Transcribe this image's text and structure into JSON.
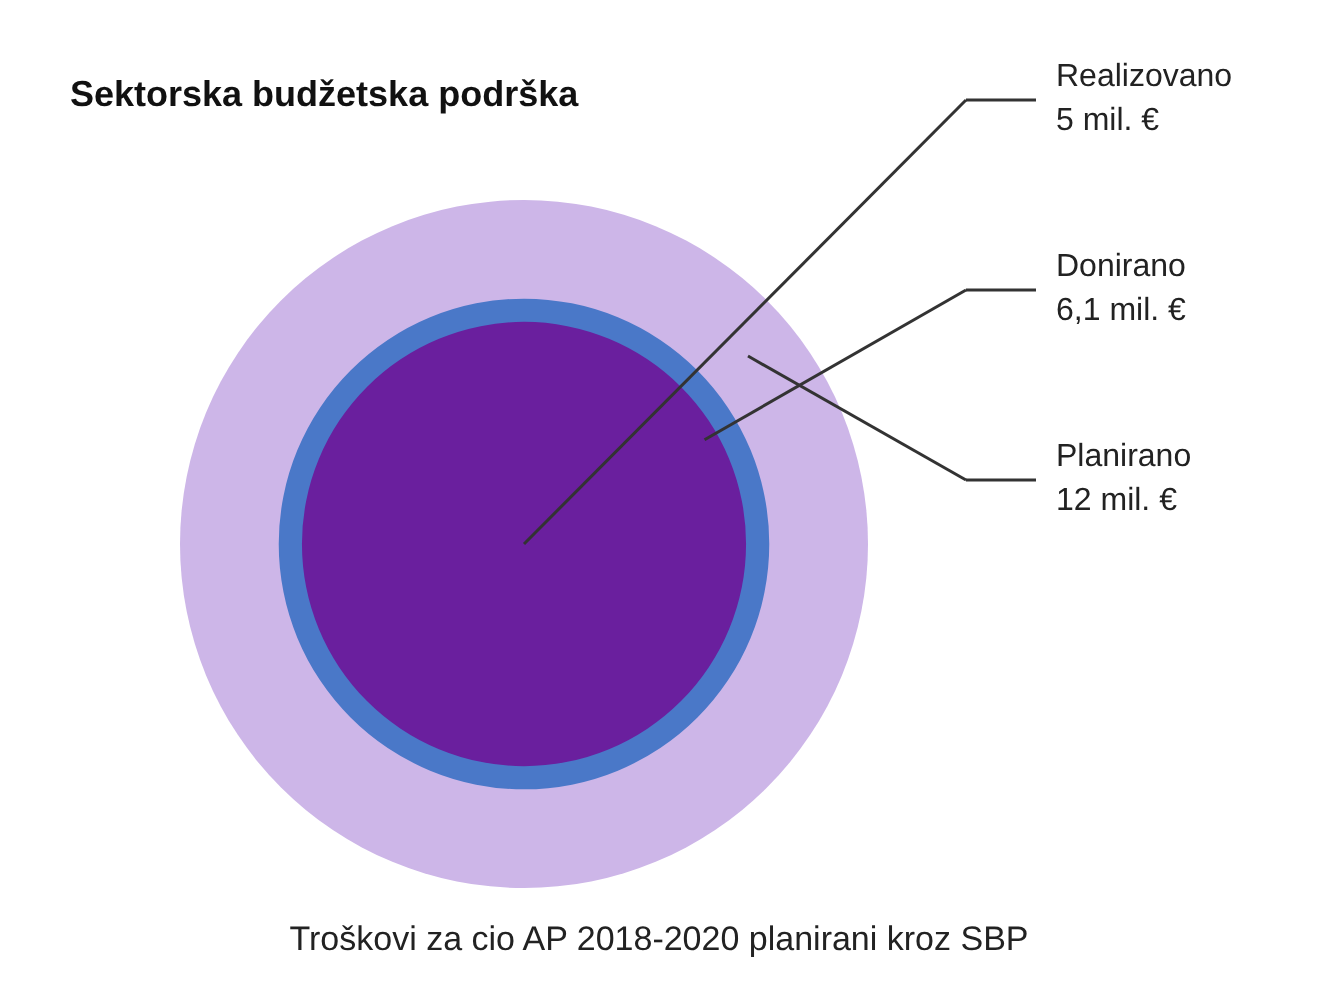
{
  "chart_data": {
    "type": "other",
    "title": "Sektorska budžetska podrška",
    "categories": [
      "Realizovano",
      "Donirano",
      "Planirano"
    ],
    "values": [
      5,
      6.1,
      12
    ],
    "value_labels": [
      "5 mil. €",
      "6,1 mil. €",
      "12 mil. €"
    ],
    "colors": [
      "#6a1f9e",
      "#4a78c8",
      "#cdb6e8"
    ],
    "annotations": [
      "Troškovi za cio AP 2018-2020 planirani kroz SBP"
    ]
  }
}
